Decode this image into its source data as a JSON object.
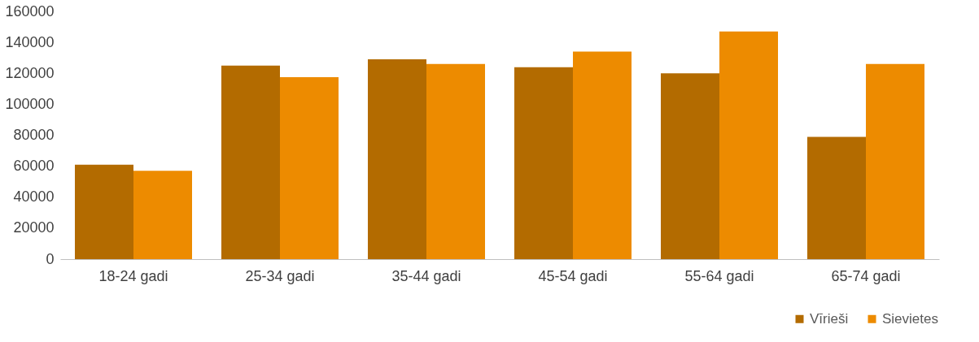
{
  "chart_data": {
    "type": "bar",
    "categories": [
      "18-24 gadi",
      "25-34 gadi",
      "35-44 gadi",
      "45-54 gadi",
      "55-64 gadi",
      "65-74 gadi"
    ],
    "series": [
      {
        "name": "Vīrieši",
        "color": "#b36b00",
        "values": [
          61000,
          125000,
          129000,
          124000,
          120000,
          79000
        ]
      },
      {
        "name": "Sievietes",
        "color": "#ed8b00",
        "values": [
          57000,
          117500,
          126000,
          134000,
          147000,
          126000
        ]
      }
    ],
    "ylim": [
      0,
      160000
    ],
    "yticks": [
      0,
      20000,
      40000,
      60000,
      80000,
      100000,
      120000,
      140000,
      160000
    ],
    "grid": false,
    "legend": "bottom right"
  }
}
